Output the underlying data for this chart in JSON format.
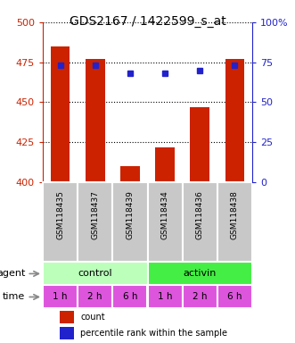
{
  "title": "GDS2167 / 1422599_s_at",
  "categories": [
    "GSM118435",
    "GSM118437",
    "GSM118439",
    "GSM118434",
    "GSM118436",
    "GSM118438"
  ],
  "bar_values": [
    485,
    477,
    410,
    422,
    447,
    477
  ],
  "percentile_values": [
    73,
    73,
    68,
    68,
    70,
    73
  ],
  "bar_color": "#cc2200",
  "marker_color": "#2222cc",
  "ylim_left": [
    400,
    500
  ],
  "ylim_right": [
    0,
    100
  ],
  "yticks_left": [
    400,
    425,
    450,
    475,
    500
  ],
  "yticks_right": [
    0,
    25,
    50,
    75,
    100
  ],
  "agent_labels": [
    "control",
    "activin"
  ],
  "agent_colors": [
    "#bbffbb",
    "#44ee44"
  ],
  "time_color": "#dd55dd",
  "time_labels": [
    "1 h",
    "2 h",
    "6 h",
    "1 h",
    "2 h",
    "6 h"
  ],
  "legend_count_color": "#cc2200",
  "legend_percentile_color": "#2222cc",
  "xlabel_bg": "#c8c8c8",
  "title_fontsize": 10,
  "tick_fontsize": 8,
  "label_fontsize": 8
}
